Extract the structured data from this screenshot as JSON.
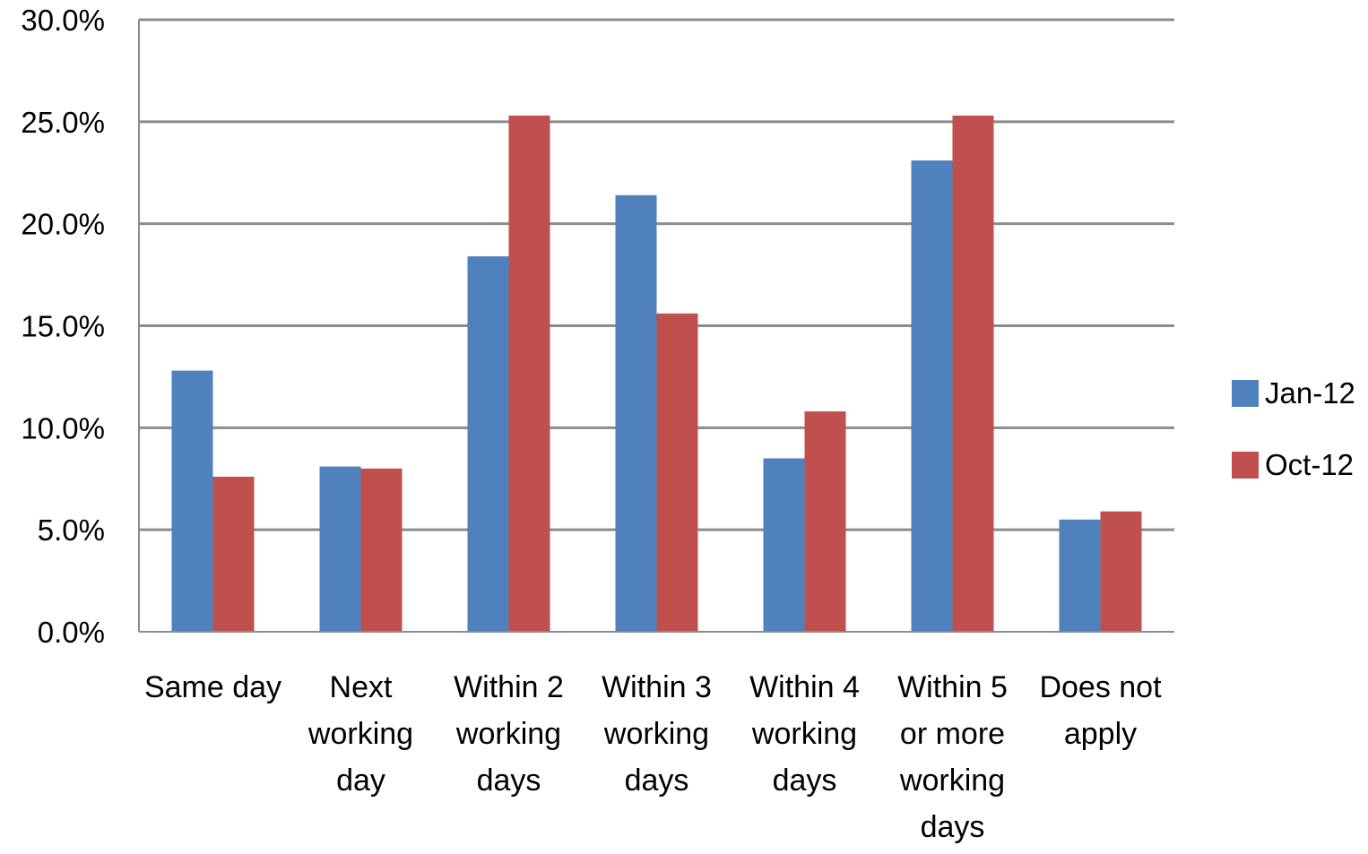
{
  "chart_data": {
    "type": "bar",
    "title": "",
    "xlabel": "",
    "ylabel": "",
    "categories": [
      [
        "Same day"
      ],
      [
        "Next",
        "working",
        "day"
      ],
      [
        "Within 2",
        "working",
        "days"
      ],
      [
        "Within 3",
        "working",
        "days"
      ],
      [
        "Within 4",
        "working",
        "days"
      ],
      [
        "Within 5",
        "or more",
        "working",
        "days"
      ],
      [
        "Does not",
        "apply"
      ]
    ],
    "series": [
      {
        "name": "Jan-12",
        "color": "#4F81BD",
        "values": [
          12.8,
          8.1,
          18.4,
          21.4,
          8.5,
          23.1,
          5.5
        ]
      },
      {
        "name": "Oct-12",
        "color": "#C0504D",
        "values": [
          7.6,
          8.0,
          25.3,
          15.6,
          10.8,
          25.3,
          5.9
        ]
      }
    ],
    "ylim": [
      0,
      30
    ],
    "yticks": [
      "0.0%",
      "5.0%",
      "10.0%",
      "15.0%",
      "20.0%",
      "25.0%",
      "30.0%"
    ],
    "grid": true,
    "legend_position": "right"
  }
}
